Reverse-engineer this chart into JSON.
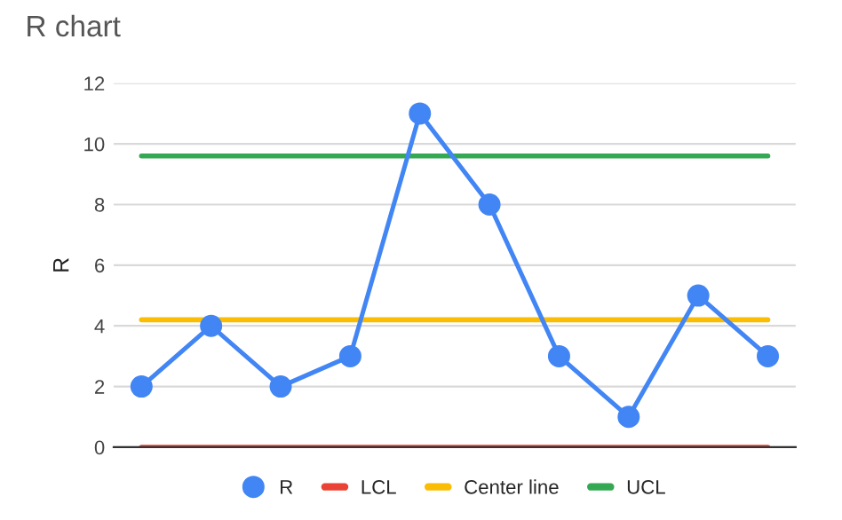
{
  "chart_data": {
    "type": "line",
    "title": "R chart",
    "ylabel": "R",
    "categories": [
      null,
      null,
      null,
      null,
      null,
      null,
      null,
      null,
      null,
      null
    ],
    "series": [
      {
        "name": "R",
        "color": "#4285f4",
        "marker": "circle",
        "values": [
          2,
          4,
          2,
          3,
          11,
          8,
          3,
          1,
          5,
          3
        ]
      },
      {
        "name": "LCL",
        "color": "#ea4335",
        "marker": "none",
        "values": [
          0,
          0,
          0,
          0,
          0,
          0,
          0,
          0,
          0,
          0
        ]
      },
      {
        "name": "Center line",
        "color": "#fbbc04",
        "marker": "none",
        "values": [
          4.2,
          4.2,
          4.2,
          4.2,
          4.2,
          4.2,
          4.2,
          4.2,
          4.2,
          4.2
        ]
      },
      {
        "name": "UCL",
        "color": "#34a853",
        "marker": "none",
        "values": [
          9.6,
          9.6,
          9.6,
          9.6,
          9.6,
          9.6,
          9.6,
          9.6,
          9.6,
          9.6
        ]
      }
    ],
    "ylim": [
      0,
      12
    ],
    "yticks": [
      0,
      2,
      4,
      6,
      8,
      10,
      12
    ],
    "grid": "y",
    "legend": "bottom"
  }
}
